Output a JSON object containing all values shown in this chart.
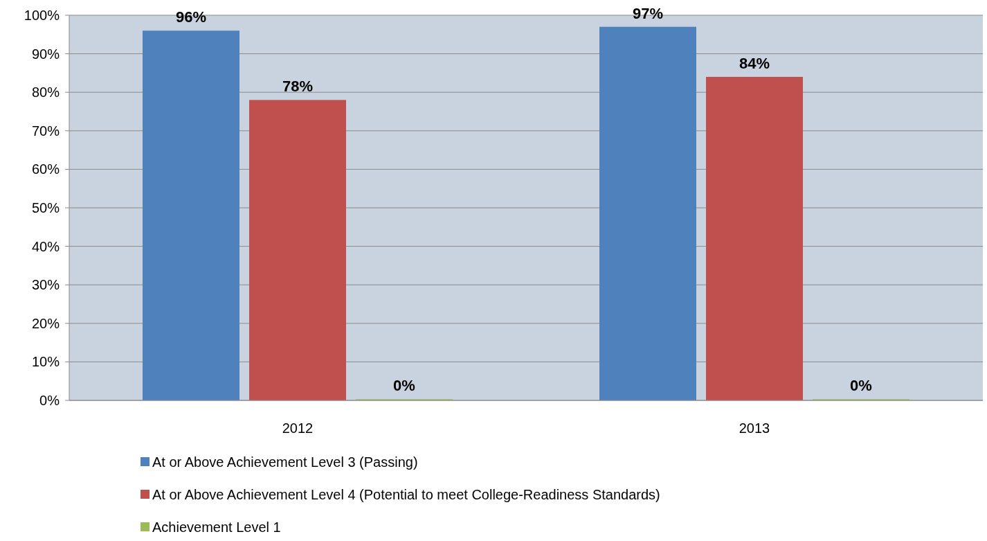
{
  "chart_data": {
    "type": "bar",
    "categories": [
      "2012",
      "2013"
    ],
    "series": [
      {
        "name": "At or Above Achievement Level 3 (Passing)",
        "color": "#4f81bd",
        "values": [
          96,
          97
        ],
        "value_labels": [
          "96%",
          "97%"
        ]
      },
      {
        "name": "At or Above Achievement Level 4 (Potential to meet College-Readiness Standards)",
        "color": "#c0504d",
        "values": [
          78,
          84
        ],
        "value_labels": [
          "78%",
          "84%"
        ]
      },
      {
        "name": "Achievement Level 1",
        "color": "#9bbb59",
        "values": [
          0.3,
          0.3
        ],
        "value_labels": [
          "0%",
          "0%"
        ]
      }
    ],
    "ylim": [
      0,
      100
    ],
    "yticks": [
      {
        "value": 0,
        "label": "0%"
      },
      {
        "value": 10,
        "label": "10%"
      },
      {
        "value": 20,
        "label": "20%"
      },
      {
        "value": 30,
        "label": "30%"
      },
      {
        "value": 40,
        "label": "40%"
      },
      {
        "value": 50,
        "label": "50%"
      },
      {
        "value": 60,
        "label": "60%"
      },
      {
        "value": 70,
        "label": "70%"
      },
      {
        "value": 80,
        "label": "80%"
      },
      {
        "value": 90,
        "label": "90%"
      },
      {
        "value": 100,
        "label": "100%"
      }
    ],
    "grid": "y",
    "legend": "bottom"
  }
}
